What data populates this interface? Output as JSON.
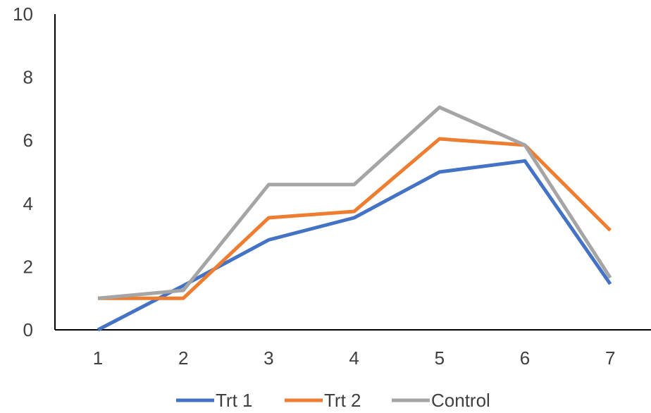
{
  "chart_data": {
    "type": "line",
    "title": "",
    "xlabel": "",
    "ylabel": "",
    "categories": [
      "1",
      "2",
      "3",
      "4",
      "5",
      "6",
      "7"
    ],
    "ylim": [
      0,
      10
    ],
    "yticks": [
      "0",
      "2",
      "4",
      "6",
      "8",
      "10"
    ],
    "grid": false,
    "legend_position": "bottom",
    "series": [
      {
        "name": "Trt 1",
        "color": "#4472C4",
        "values": [
          0,
          1.4,
          2.85,
          3.55,
          5.0,
          5.35,
          1.45
        ]
      },
      {
        "name": "Trt 2",
        "color": "#ED7D31",
        "values": [
          1.0,
          1.0,
          3.55,
          3.75,
          6.05,
          5.85,
          3.15
        ]
      },
      {
        "name": "Control",
        "color": "#A5A5A5",
        "values": [
          1.0,
          1.25,
          4.6,
          4.6,
          7.05,
          5.85,
          1.65
        ]
      }
    ]
  }
}
